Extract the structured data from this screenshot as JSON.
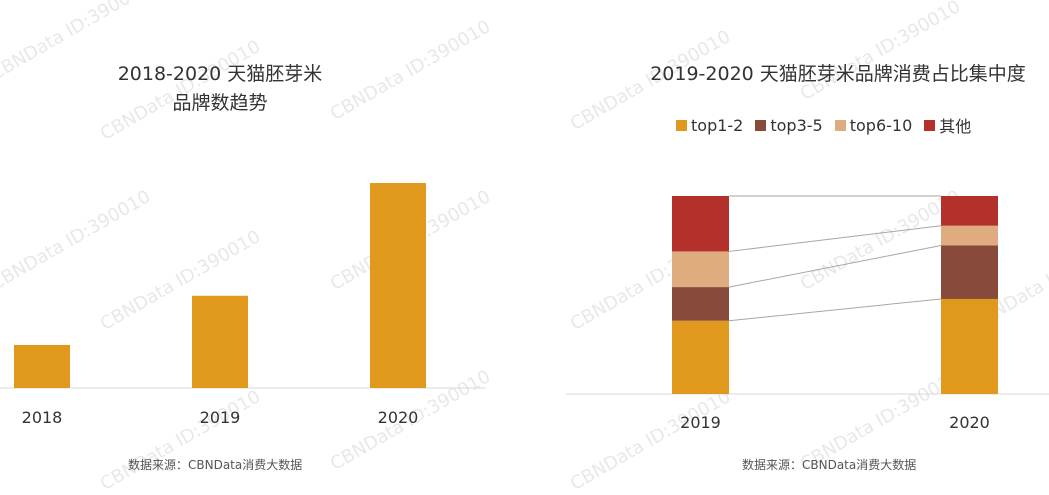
{
  "watermark": "CBNData ID:390010",
  "chart_data": [
    {
      "type": "bar",
      "title_line1": "2018-2020 天猫胚芽米",
      "title_line2": "品牌数趋势",
      "categories": [
        "2018",
        "2019",
        "2020"
      ],
      "values": [
        21,
        45,
        100
      ],
      "ylim": [
        0,
        100
      ],
      "color": "#E0991C",
      "source": "数据来源：CBNData消费大数据"
    },
    {
      "type": "bar",
      "stacked": true,
      "normalized_percent": true,
      "title": "2019-2020 天猫胚芽米品牌消费占比集中度",
      "categories": [
        "2019",
        "2020"
      ],
      "series": [
        {
          "name": "top1-2",
          "color": "#E0991C",
          "values": [
            37,
            48
          ]
        },
        {
          "name": "top3-5",
          "color": "#884A3A",
          "values": [
            17,
            27
          ]
        },
        {
          "name": "top6-10",
          "color": "#DFAC80",
          "values": [
            18,
            10
          ]
        },
        {
          "name": "其他",
          "color": "#B3312A",
          "values": [
            28,
            15
          ]
        }
      ],
      "connector_lines": true,
      "source": "数据来源：CBNData消费大数据"
    }
  ]
}
